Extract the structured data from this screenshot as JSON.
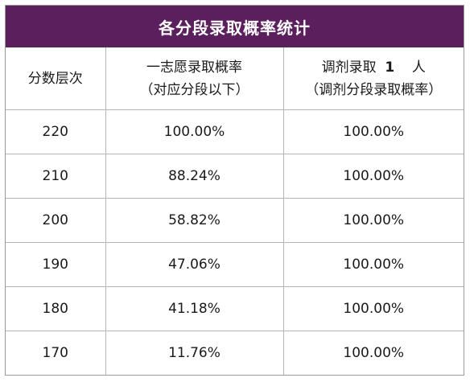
{
  "title": "各分段录取概率统计",
  "headers": {
    "col1": "分数层次",
    "col2_line1": "一志愿录取概率",
    "col2_line2": "（对应分段以下）",
    "col3_line1_prefix": "调剂录取",
    "col3_line1_number": "1",
    "col3_line1_suffix": "人",
    "col3_line2": "（调剂分段录取概率）"
  },
  "rows": [
    {
      "score": "220",
      "first_choice": "100.00%",
      "adjust": "100.00%"
    },
    {
      "score": "210",
      "first_choice": "88.24%",
      "adjust": "100.00%"
    },
    {
      "score": "200",
      "first_choice": "58.82%",
      "adjust": "100.00%"
    },
    {
      "score": "190",
      "first_choice": "47.06%",
      "adjust": "100.00%"
    },
    {
      "score": "180",
      "first_choice": "41.18%",
      "adjust": "100.00%"
    },
    {
      "score": "170",
      "first_choice": "11.76%",
      "adjust": "100.00%"
    }
  ],
  "colors": {
    "title_bg": "#5b1f5e",
    "title_text": "#ffffff",
    "grid": "#b5b5b5"
  }
}
